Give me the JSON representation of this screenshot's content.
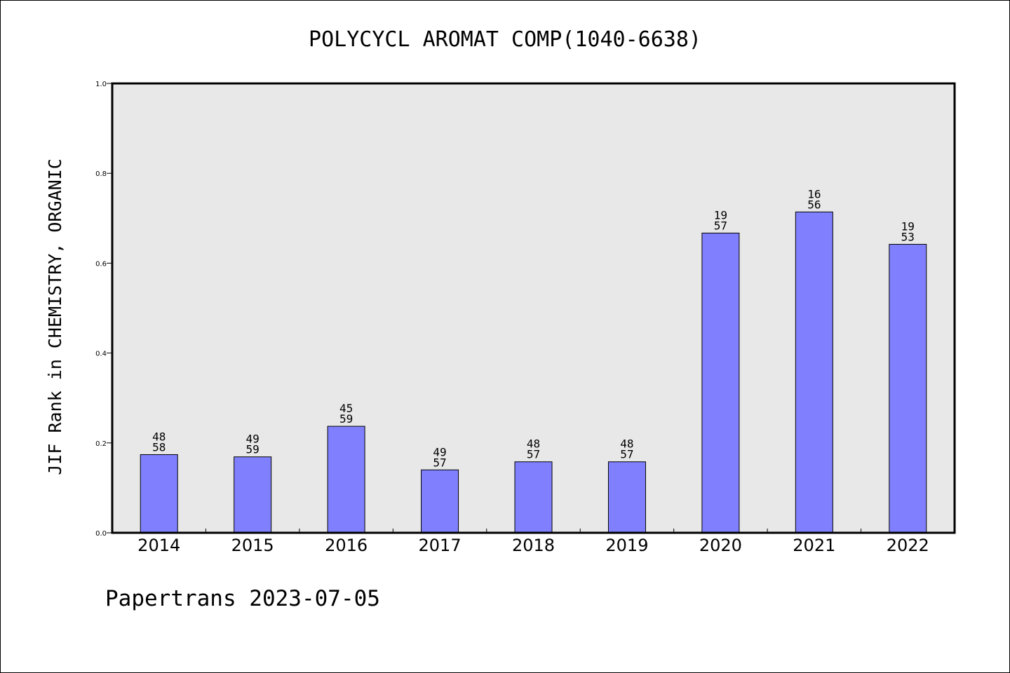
{
  "chart_data": {
    "type": "bar",
    "title": "POLYCYCL AROMAT COMP(1040-6638)",
    "ylabel": "JIF Rank in CHEMISTRY, ORGANIC",
    "xlabel": "",
    "ylim": [
      0,
      1.0
    ],
    "yticks": [
      "0.0",
      "0.2",
      "0.4",
      "0.6",
      "0.8",
      "1.0"
    ],
    "ytick_values": [
      0,
      0.2,
      0.4,
      0.6,
      0.8,
      1.0
    ],
    "categories": [
      "2014",
      "2015",
      "2016",
      "2017",
      "2018",
      "2019",
      "2020",
      "2021",
      "2022"
    ],
    "values": [
      0.174,
      0.169,
      0.237,
      0.14,
      0.158,
      0.158,
      0.667,
      0.714,
      0.642
    ],
    "labels_top": [
      "48",
      "49",
      "45",
      "49",
      "48",
      "48",
      "19",
      "16",
      "19"
    ],
    "labels_bottom": [
      "58",
      "59",
      "59",
      "57",
      "57",
      "57",
      "57",
      "56",
      "53"
    ],
    "grid": false,
    "bar_color": "#8080ff",
    "plot_background": "#e8e8e8"
  },
  "footer": "Papertrans 2023-07-05"
}
